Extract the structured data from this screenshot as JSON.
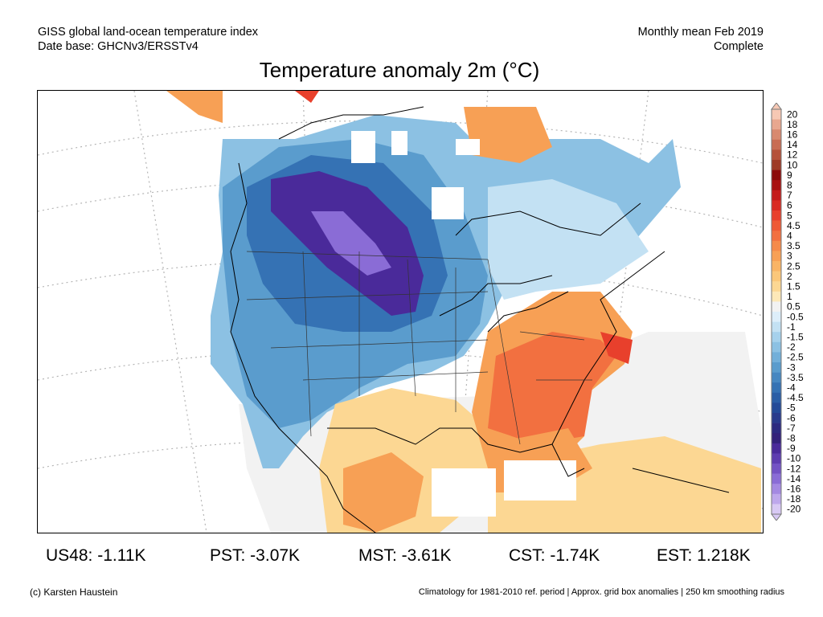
{
  "header": {
    "left_line1": "GISS global land-ocean temperature index",
    "left_line2": "Date base: GHCNv3/ERSSTv4",
    "right_line1": "Monthly mean Feb 2019",
    "right_line2": "Complete"
  },
  "title": "Temperature anomaly 2m (°C)",
  "stats": [
    {
      "label": "US48: -1.11K"
    },
    {
      "label": "PST: -3.07K"
    },
    {
      "label": "MST: -3.61K"
    },
    {
      "label": "CST: -1.74K"
    },
    {
      "label": "EST: 1.218K"
    }
  ],
  "footer": {
    "left": "(c) Karsten Haustein",
    "right": "Climatology for 1981-2010 ref. period | Approx. grid box anomalies | 250 km smoothing radius"
  },
  "colorbar": {
    "entries": [
      {
        "label": "20",
        "color": "#f6c8b4"
      },
      {
        "label": "18",
        "color": "#e8a78f"
      },
      {
        "label": "16",
        "color": "#d8896f"
      },
      {
        "label": "14",
        "color": "#c86c53"
      },
      {
        "label": "12",
        "color": "#b5513a"
      },
      {
        "label": "10",
        "color": "#9e3a26"
      },
      {
        "label": "9",
        "color": "#8c0a0a"
      },
      {
        "label": "8",
        "color": "#a80f0f"
      },
      {
        "label": "7",
        "color": "#c41a1a"
      },
      {
        "label": "6",
        "color": "#d92a22"
      },
      {
        "label": "5",
        "color": "#e8402c"
      },
      {
        "label": "4.5",
        "color": "#ee5a36"
      },
      {
        "label": "4",
        "color": "#f27040"
      },
      {
        "label": "3.5",
        "color": "#f58a4a"
      },
      {
        "label": "3",
        "color": "#f7a055"
      },
      {
        "label": "2.5",
        "color": "#f9b465"
      },
      {
        "label": "2",
        "color": "#fbc77a"
      },
      {
        "label": "1.5",
        "color": "#fcd793"
      },
      {
        "label": "1",
        "color": "#fde8b8"
      },
      {
        "label": "0.5",
        "color": "#f2f2f2"
      },
      {
        "label": "-0.5",
        "color": "#ddeefa"
      },
      {
        "label": "-1",
        "color": "#c3e1f3"
      },
      {
        "label": "-1.5",
        "color": "#a6d1ec"
      },
      {
        "label": "-2",
        "color": "#8cc1e3"
      },
      {
        "label": "-2.5",
        "color": "#72afd9"
      },
      {
        "label": "-3",
        "color": "#5a9ccd"
      },
      {
        "label": "-3.5",
        "color": "#4687c1"
      },
      {
        "label": "-4",
        "color": "#3572b4"
      },
      {
        "label": "-4.5",
        "color": "#2a5ea6"
      },
      {
        "label": "-5",
        "color": "#234a98"
      },
      {
        "label": "-6",
        "color": "#283a8c"
      },
      {
        "label": "-7",
        "color": "#2c2a80"
      },
      {
        "label": "-8",
        "color": "#33217a"
      },
      {
        "label": "-9",
        "color": "#4a2a9a"
      },
      {
        "label": "-10",
        "color": "#5e3cb0"
      },
      {
        "label": "-12",
        "color": "#7352c4"
      },
      {
        "label": "-14",
        "color": "#8a6cd6"
      },
      {
        "label": "-16",
        "color": "#a489e2"
      },
      {
        "label": "-18",
        "color": "#bea8ec"
      },
      {
        "label": "-20",
        "color": "#d8c9f4"
      }
    ]
  },
  "map_colors": {
    "purple_dark": "#4a2a9a",
    "purple_mid": "#5e3cb0",
    "purple_light": "#8a6cd6",
    "blue_dark": "#234a98",
    "blue_mid": "#3572b4",
    "blue": "#5a9ccd",
    "blue_light": "#8cc1e3",
    "blue_pale": "#c3e1f3",
    "neutral": "#f2f2f2",
    "orange_pale": "#fcd793",
    "orange": "#f7a055",
    "orange_dark": "#f27040",
    "red": "#e8402c"
  }
}
